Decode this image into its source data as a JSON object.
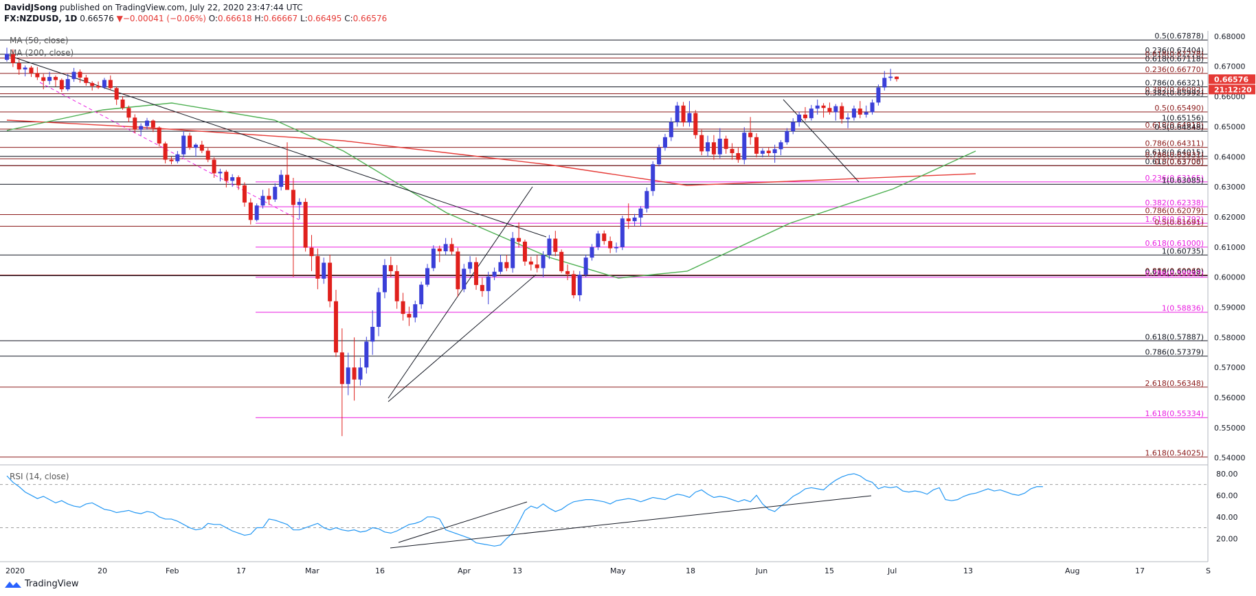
{
  "header": {
    "author": "DavidJSong",
    "published": "published on TradingView.com, July 22, 2020 23:47:44 UTC",
    "symbol": "FX:NZDUSD, 1D",
    "last": "0.66576",
    "change": "−0.00041 (−0.06%)",
    "open_label": "O:",
    "open": "0.66618",
    "high_label": "H:",
    "high": "0.66667",
    "low_label": "L:",
    "low": "0.66495",
    "close_label": "C:",
    "close": "0.66576"
  },
  "branding": {
    "logo_text": "TradingView"
  },
  "colors": {
    "up": "#3a3fd8",
    "down": "#e0201c",
    "ma50": "#4caf50",
    "ma200": "#e53935",
    "fib_black": "#131722",
    "fib_red": "#8b1a1a",
    "fib_magenta": "#e91ee0",
    "rsi": "#2196f3",
    "price_tag": "#e53935"
  },
  "chart_data": {
    "type": "candlestick",
    "symbol": "NZDUSD",
    "timeframe": "1D",
    "ylim": [
      0.5388,
      0.6818
    ],
    "price_ticks": [
      "0.68000",
      "0.67000",
      "0.66000",
      "0.65000",
      "0.64000",
      "0.63000",
      "0.62000",
      "0.61000",
      "0.60000",
      "0.59000",
      "0.58000",
      "0.57000",
      "0.56000",
      "0.55000",
      "0.54000"
    ],
    "x_ticks": [
      "2020",
      "20",
      "Feb",
      "17",
      "Mar",
      "16",
      "Apr",
      "13",
      "May",
      "18",
      "Jun",
      "15",
      "Jul",
      "13",
      "Aug",
      "17",
      "S"
    ],
    "indicators": [
      "MA (50, close)",
      "MA (200, close)"
    ],
    "rsi": {
      "label": "RSI (14, close)",
      "ylim": [
        10,
        85
      ],
      "ticks": [
        "80.00",
        "60.00",
        "40.00",
        "20.00"
      ],
      "values": [
        78,
        72,
        68,
        63,
        60,
        57,
        59,
        56,
        53,
        55,
        52,
        50,
        49,
        52,
        53,
        50,
        47,
        46,
        44,
        45,
        46,
        44,
        43,
        45,
        44,
        40,
        38,
        38,
        36,
        33,
        30,
        28,
        29,
        34,
        33,
        33,
        30,
        27,
        25,
        23,
        24,
        30,
        30,
        38,
        37,
        35,
        33,
        28,
        28,
        30,
        32,
        34,
        30,
        28,
        30,
        28,
        27,
        28,
        26,
        27,
        30,
        29,
        26,
        25,
        27,
        30,
        33,
        34,
        36,
        40,
        40,
        38,
        28,
        26,
        24,
        22,
        20,
        16,
        15,
        14,
        13,
        14,
        20,
        25,
        35,
        46,
        50,
        48,
        52,
        48,
        45,
        47,
        51,
        54,
        55,
        56,
        56,
        55,
        54,
        52,
        55,
        56,
        57,
        56,
        54,
        56,
        58,
        57,
        56,
        59,
        61,
        60,
        58,
        63,
        65,
        61,
        58,
        59,
        58,
        56,
        54,
        56,
        54,
        60,
        52,
        47,
        45,
        50,
        54,
        59,
        62,
        66,
        67,
        66,
        65,
        70,
        74,
        77,
        79,
        80,
        78,
        74,
        72,
        66,
        68,
        67,
        68,
        64,
        63,
        64,
        63,
        61,
        65,
        67,
        56,
        55,
        56,
        59,
        61,
        62,
        64,
        66,
        64,
        65,
        63,
        61,
        60,
        62,
        66,
        68,
        68
      ]
    },
    "fib_levels": [
      {
        "label": "0.5(0.67878)",
        "price": 0.67878,
        "group": "black",
        "x0": 0
      },
      {
        "label": "0.236(0.67404)",
        "price": 0.67404,
        "group": "black",
        "x0": 0
      },
      {
        "label": "0.618(0.67278)",
        "price": 0.67278,
        "group": "red",
        "x0": 0
      },
      {
        "label": "0.618(0.67118)",
        "price": 0.67118,
        "group": "black",
        "x0": 0
      },
      {
        "label": "0.236(0.66770)",
        "price": 0.6677,
        "group": "red",
        "x0": 0
      },
      {
        "label": "0.786(0.66321)",
        "price": 0.66321,
        "group": "black",
        "x0": 0
      },
      {
        "label": "0.382(0.66092)",
        "price": 0.66092,
        "group": "red",
        "x0": 0
      },
      {
        "label": "0.382(0.65992)",
        "price": 0.65992,
        "group": "black",
        "x0": 0
      },
      {
        "label": "0.5(0.65490)",
        "price": 0.6549,
        "group": "red",
        "x0": 0
      },
      {
        "label": "1(0.65156)",
        "price": 0.65156,
        "group": "black",
        "x0": 0
      },
      {
        "label": "0.618(0.64918)",
        "price": 0.64918,
        "group": "red",
        "x0": 0
      },
      {
        "label": "0.5(0.64848)",
        "price": 0.64848,
        "group": "black",
        "x0": 0
      },
      {
        "label": "0.786(0.64311)",
        "price": 0.64311,
        "group": "red",
        "x0": 0
      },
      {
        "label": "0.618(0.64015)",
        "price": 0.64015,
        "group": "black",
        "x0": 0
      },
      {
        "label": "0.786(0.63931)",
        "price": 0.63931,
        "group": "red",
        "x0": 0
      },
      {
        "label": "0.618(0.63706)",
        "price": 0.63706,
        "group": "black",
        "x0": 0
      },
      {
        "label": "0.5(0.63700)",
        "price": 0.637,
        "group": "red",
        "x0": 0
      },
      {
        "label": "0.236(0.63165)",
        "price": 0.63165,
        "group": "magenta",
        "x0": 372
      },
      {
        "label": "1(0.63085)",
        "price": 0.63085,
        "group": "black",
        "x0": 0
      },
      {
        "label": "0.382(0.62338)",
        "price": 0.62338,
        "group": "magenta",
        "x0": 372
      },
      {
        "label": "0.786(0.62079)",
        "price": 0.62079,
        "group": "red",
        "x0": 0
      },
      {
        "label": "1.618(0.61792)",
        "price": 0.61792,
        "group": "magenta",
        "x0": 372
      },
      {
        "label": "0.5(0.61691)",
        "price": 0.61691,
        "group": "red",
        "x0": 0
      },
      {
        "label": "0.618(0.61000)",
        "price": 0.61,
        "group": "magenta",
        "x0": 372
      },
      {
        "label": "1(0.60735)",
        "price": 0.60735,
        "group": "black",
        "x0": 0
      },
      {
        "label": "0.886(0.60069)",
        "price": 0.60069,
        "group": "red",
        "x0": 0
      },
      {
        "label": "0.618(0.60048)",
        "price": 0.60048,
        "group": "black",
        "x0": 0
      },
      {
        "label": "0.786(0.59997)",
        "price": 0.59997,
        "group": "magenta",
        "x0": 372
      },
      {
        "label": "1(0.58836)",
        "price": 0.58836,
        "group": "magenta",
        "x0": 372
      },
      {
        "label": "0.618(0.57887)",
        "price": 0.57887,
        "group": "black",
        "x0": 0
      },
      {
        "label": "0.786(0.57379)",
        "price": 0.57379,
        "group": "black",
        "x0": 0
      },
      {
        "label": "2.618(0.56348)",
        "price": 0.56348,
        "group": "red",
        "x0": 0
      },
      {
        "label": "1.618(0.55334)",
        "price": 0.55334,
        "group": "magenta",
        "x0": 372
      },
      {
        "label": "1.618(0.54025)",
        "price": 0.54025,
        "group": "red",
        "x0": 0
      }
    ],
    "last_price_tag": "0.66576",
    "countdown_tag": "21:12:20",
    "candles": [
      [
        0.6722,
        0.6762,
        0.6716,
        0.6742
      ],
      [
        0.6742,
        0.6757,
        0.6698,
        0.6711
      ],
      [
        0.6711,
        0.6722,
        0.6672,
        0.669
      ],
      [
        0.669,
        0.6703,
        0.6667,
        0.6696
      ],
      [
        0.6696,
        0.6702,
        0.6665,
        0.6678
      ],
      [
        0.6678,
        0.6698,
        0.6655,
        0.6664
      ],
      [
        0.6664,
        0.6675,
        0.6624,
        0.6652
      ],
      [
        0.6652,
        0.6682,
        0.664,
        0.6665
      ],
      [
        0.6665,
        0.667,
        0.6633,
        0.6655
      ],
      [
        0.6655,
        0.666,
        0.6615,
        0.6624
      ],
      [
        0.6624,
        0.6675,
        0.6618,
        0.6658
      ],
      [
        0.6658,
        0.6695,
        0.6649,
        0.6682
      ],
      [
        0.6682,
        0.669,
        0.6646,
        0.6663
      ],
      [
        0.6663,
        0.6672,
        0.6636,
        0.6645
      ],
      [
        0.6645,
        0.6651,
        0.662,
        0.6635
      ],
      [
        0.6635,
        0.665,
        0.6625,
        0.663
      ],
      [
        0.663,
        0.6662,
        0.6625,
        0.6655
      ],
      [
        0.6655,
        0.667,
        0.6621,
        0.6628
      ],
      [
        0.6628,
        0.6634,
        0.6572,
        0.659
      ],
      [
        0.659,
        0.6601,
        0.6556,
        0.6562
      ],
      [
        0.6562,
        0.657,
        0.6515,
        0.653
      ],
      [
        0.653,
        0.6541,
        0.6478,
        0.649
      ],
      [
        0.649,
        0.6511,
        0.647,
        0.6502
      ],
      [
        0.6502,
        0.6529,
        0.649,
        0.652
      ],
      [
        0.652,
        0.6524,
        0.6482,
        0.6497
      ],
      [
        0.6497,
        0.6501,
        0.6434,
        0.6444
      ],
      [
        0.6444,
        0.645,
        0.6378,
        0.639
      ],
      [
        0.639,
        0.64,
        0.6375,
        0.6385
      ],
      [
        0.6385,
        0.6419,
        0.6378,
        0.6408
      ],
      [
        0.6408,
        0.6485,
        0.6398,
        0.647
      ],
      [
        0.647,
        0.648,
        0.6423,
        0.643
      ],
      [
        0.643,
        0.6445,
        0.64,
        0.644
      ],
      [
        0.644,
        0.6453,
        0.6412,
        0.642
      ],
      [
        0.642,
        0.6429,
        0.6382,
        0.639
      ],
      [
        0.639,
        0.6398,
        0.633,
        0.6345
      ],
      [
        0.6345,
        0.636,
        0.6318,
        0.635
      ],
      [
        0.635,
        0.6356,
        0.6298,
        0.632
      ],
      [
        0.632,
        0.6342,
        0.63,
        0.6332
      ],
      [
        0.6332,
        0.6338,
        0.629,
        0.6305
      ],
      [
        0.6305,
        0.6315,
        0.6234,
        0.6248
      ],
      [
        0.6248,
        0.6262,
        0.6175,
        0.619
      ],
      [
        0.619,
        0.6245,
        0.6185,
        0.6238
      ],
      [
        0.6238,
        0.629,
        0.6228,
        0.627
      ],
      [
        0.627,
        0.6295,
        0.624,
        0.6258
      ],
      [
        0.6258,
        0.6312,
        0.625,
        0.63
      ],
      [
        0.63,
        0.6356,
        0.6288,
        0.634
      ],
      [
        0.634,
        0.6448,
        0.63,
        0.629
      ],
      [
        0.629,
        0.633,
        0.6001,
        0.624
      ],
      [
        0.624,
        0.6262,
        0.6192,
        0.625
      ],
      [
        0.625,
        0.6262,
        0.6085,
        0.6098
      ],
      [
        0.6098,
        0.614,
        0.602,
        0.607
      ],
      [
        0.607,
        0.6095,
        0.596,
        0.5995
      ],
      [
        0.5995,
        0.6065,
        0.5978,
        0.6048
      ],
      [
        0.6048,
        0.6075,
        0.59,
        0.592
      ],
      [
        0.592,
        0.5958,
        0.5735,
        0.575
      ],
      [
        0.575,
        0.583,
        0.5472,
        0.5645
      ],
      [
        0.5645,
        0.5749,
        0.5608,
        0.57
      ],
      [
        0.57,
        0.58,
        0.559,
        0.566
      ],
      [
        0.566,
        0.5732,
        0.564,
        0.57
      ],
      [
        0.57,
        0.5802,
        0.568,
        0.5786
      ],
      [
        0.5786,
        0.589,
        0.5742,
        0.5835
      ],
      [
        0.5835,
        0.5965,
        0.5804,
        0.595
      ],
      [
        0.595,
        0.606,
        0.593,
        0.604
      ],
      [
        0.604,
        0.6068,
        0.6,
        0.602
      ],
      [
        0.602,
        0.604,
        0.5895,
        0.592
      ],
      [
        0.592,
        0.5948,
        0.5856,
        0.5878
      ],
      [
        0.5878,
        0.5902,
        0.5838,
        0.5866
      ],
      [
        0.5866,
        0.5922,
        0.585,
        0.591
      ],
      [
        0.591,
        0.5985,
        0.5895,
        0.5975
      ],
      [
        0.5975,
        0.6044,
        0.5968,
        0.603
      ],
      [
        0.603,
        0.6106,
        0.602,
        0.6095
      ],
      [
        0.6095,
        0.6105,
        0.605,
        0.6086
      ],
      [
        0.6086,
        0.613,
        0.6075,
        0.611
      ],
      [
        0.611,
        0.613,
        0.6075,
        0.6085
      ],
      [
        0.6085,
        0.6098,
        0.5935,
        0.596
      ],
      [
        0.596,
        0.6044,
        0.595,
        0.6028
      ],
      [
        0.6028,
        0.607,
        0.6012,
        0.605
      ],
      [
        0.605,
        0.6066,
        0.5958,
        0.5974
      ],
      [
        0.5974,
        0.5998,
        0.5935,
        0.5954
      ],
      [
        0.5954,
        0.6018,
        0.591,
        0.6002
      ],
      [
        0.6002,
        0.6032,
        0.599,
        0.6018
      ],
      [
        0.6018,
        0.6074,
        0.601,
        0.605
      ],
      [
        0.605,
        0.6074,
        0.602,
        0.603
      ],
      [
        0.603,
        0.615,
        0.6015,
        0.613
      ],
      [
        0.613,
        0.6182,
        0.6098,
        0.6118
      ],
      [
        0.6118,
        0.6125,
        0.6038,
        0.6052
      ],
      [
        0.6052,
        0.6068,
        0.6022,
        0.6042
      ],
      [
        0.6042,
        0.6074,
        0.6016,
        0.603
      ],
      [
        0.603,
        0.6086,
        0.6,
        0.6074
      ],
      [
        0.6074,
        0.614,
        0.606,
        0.6128
      ],
      [
        0.6128,
        0.6154,
        0.607,
        0.6084
      ],
      [
        0.6084,
        0.6092,
        0.6014,
        0.602
      ],
      [
        0.602,
        0.6042,
        0.599,
        0.601
      ],
      [
        0.601,
        0.6022,
        0.593,
        0.594
      ],
      [
        0.594,
        0.602,
        0.592,
        0.6008
      ],
      [
        0.6008,
        0.6075,
        0.6,
        0.6065
      ],
      [
        0.6065,
        0.611,
        0.6055,
        0.61
      ],
      [
        0.61,
        0.6154,
        0.609,
        0.6145
      ],
      [
        0.6145,
        0.6155,
        0.6108,
        0.612
      ],
      [
        0.612,
        0.6135,
        0.608,
        0.6096
      ],
      [
        0.6096,
        0.6115,
        0.6082,
        0.61
      ],
      [
        0.61,
        0.6204,
        0.609,
        0.6195
      ],
      [
        0.6195,
        0.6245,
        0.616,
        0.6186
      ],
      [
        0.6186,
        0.621,
        0.617,
        0.6198
      ],
      [
        0.6198,
        0.6236,
        0.6168,
        0.6228
      ],
      [
        0.6228,
        0.6298,
        0.6215,
        0.6286
      ],
      [
        0.6286,
        0.6385,
        0.627,
        0.6375
      ],
      [
        0.6375,
        0.644,
        0.6368,
        0.643
      ],
      [
        0.643,
        0.6476,
        0.642,
        0.6465
      ],
      [
        0.6465,
        0.653,
        0.6452,
        0.6515
      ],
      [
        0.6515,
        0.6582,
        0.65,
        0.657
      ],
      [
        0.657,
        0.6582,
        0.65,
        0.6514
      ],
      [
        0.6514,
        0.6585,
        0.65,
        0.6545
      ],
      [
        0.6545,
        0.6555,
        0.646,
        0.6472
      ],
      [
        0.6472,
        0.649,
        0.6405,
        0.6418
      ],
      [
        0.6418,
        0.647,
        0.64,
        0.6448
      ],
      [
        0.6448,
        0.6472,
        0.639,
        0.6408
      ],
      [
        0.6408,
        0.6495,
        0.6395,
        0.646
      ],
      [
        0.646,
        0.647,
        0.641,
        0.6426
      ],
      [
        0.6426,
        0.6445,
        0.639,
        0.6412
      ],
      [
        0.6412,
        0.643,
        0.638,
        0.639
      ],
      [
        0.639,
        0.6498,
        0.6375,
        0.648
      ],
      [
        0.648,
        0.6532,
        0.644,
        0.6465
      ],
      [
        0.6465,
        0.6478,
        0.6398,
        0.641
      ],
      [
        0.641,
        0.6428,
        0.6398,
        0.642
      ],
      [
        0.642,
        0.643,
        0.64,
        0.6412
      ],
      [
        0.6412,
        0.644,
        0.638,
        0.6425
      ],
      [
        0.6425,
        0.6455,
        0.6405,
        0.6448
      ],
      [
        0.6448,
        0.6495,
        0.644,
        0.6485
      ],
      [
        0.6485,
        0.6528,
        0.6475,
        0.6515
      ],
      [
        0.6515,
        0.655,
        0.65,
        0.654
      ],
      [
        0.654,
        0.6565,
        0.652,
        0.6528
      ],
      [
        0.6528,
        0.6572,
        0.652,
        0.656
      ],
      [
        0.656,
        0.659,
        0.654,
        0.657
      ],
      [
        0.657,
        0.6578,
        0.653,
        0.6562
      ],
      [
        0.6562,
        0.658,
        0.654,
        0.6548
      ],
      [
        0.6548,
        0.6575,
        0.652,
        0.6568
      ],
      [
        0.6568,
        0.658,
        0.651,
        0.6525
      ],
      [
        0.6525,
        0.6545,
        0.6495,
        0.653
      ],
      [
        0.653,
        0.657,
        0.652,
        0.656
      ],
      [
        0.656,
        0.6585,
        0.6528,
        0.654
      ],
      [
        0.654,
        0.657,
        0.653,
        0.6548
      ],
      [
        0.6548,
        0.659,
        0.654,
        0.658
      ],
      [
        0.658,
        0.664,
        0.657,
        0.663
      ],
      [
        0.663,
        0.6685,
        0.662,
        0.6662
      ],
      [
        0.6662,
        0.6692,
        0.6652,
        0.6666
      ],
      [
        0.6666,
        0.6667,
        0.665,
        0.6658
      ]
    ]
  }
}
